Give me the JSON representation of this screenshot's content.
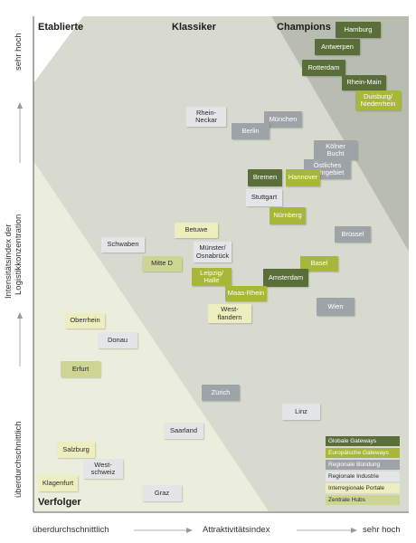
{
  "zones": {
    "etablierte": "Etablierte",
    "klassiker": "Klassiker",
    "champions": "Champions",
    "verfolger": "Verfolger"
  },
  "axes": {
    "y_title_line1": "Intensitätsindex der",
    "y_title_line2": "Logistikkonzentration",
    "y_high": "sehr hoch",
    "y_low": "überdurchschnittlich",
    "x_low": "überdurchschnittlich",
    "x_title": "Attraktivitätsindex",
    "x_high": "sehr hoch"
  },
  "colors": {
    "global": "#5a6e39",
    "europe": "#a7b73a",
    "regional_bundling": "#9ea3a8",
    "regional_industry": "#e4e5e6",
    "interregional": "#edeec0",
    "central_hubs": "#ccd692",
    "zone_champions": "#b9bcb0",
    "zone_klassiker": "#d8dacf",
    "zone_verfolger": "#eceedd"
  },
  "regions": [
    {
      "name": "Hamburg",
      "cat": "global"
    },
    {
      "name": "Antwerpen",
      "cat": "global"
    },
    {
      "name": "Rotterdam",
      "cat": "global"
    },
    {
      "name": "Rhein-Main",
      "cat": "global"
    },
    {
      "name": "Duisburg/\nNiederrhein",
      "cat": "europe"
    },
    {
      "name": "Rhein-\nNeckar",
      "cat": "regional_industry"
    },
    {
      "name": "München",
      "cat": "regional_bundling"
    },
    {
      "name": "Berlin",
      "cat": "regional_bundling"
    },
    {
      "name": "Kölner\nBucht",
      "cat": "regional_bundling"
    },
    {
      "name": "Östliches\nRuhrgebiet",
      "cat": "regional_bundling"
    },
    {
      "name": "Bremen",
      "cat": "global"
    },
    {
      "name": "Hannover",
      "cat": "europe"
    },
    {
      "name": "Stuttgart",
      "cat": "regional_industry"
    },
    {
      "name": "Nürnberg",
      "cat": "europe"
    },
    {
      "name": "Brüssel",
      "cat": "regional_bundling"
    },
    {
      "name": "Betuwe",
      "cat": "interregional"
    },
    {
      "name": "Schwaben",
      "cat": "regional_industry"
    },
    {
      "name": "Münster/\nOsnabrück",
      "cat": "regional_industry"
    },
    {
      "name": "Mitte D",
      "cat": "central_hubs"
    },
    {
      "name": "Leipzig/\nHalle",
      "cat": "europe"
    },
    {
      "name": "Basel",
      "cat": "europe"
    },
    {
      "name": "Amsterdam",
      "cat": "global"
    },
    {
      "name": "Maas-Rhein",
      "cat": "europe"
    },
    {
      "name": "Wien",
      "cat": "regional_bundling"
    },
    {
      "name": "West-\nflandern",
      "cat": "interregional"
    },
    {
      "name": "Oberrhein",
      "cat": "interregional"
    },
    {
      "name": "Donau",
      "cat": "regional_industry"
    },
    {
      "name": "Erfurt",
      "cat": "central_hubs"
    },
    {
      "name": "Zürich",
      "cat": "regional_bundling"
    },
    {
      "name": "Linz",
      "cat": "regional_industry"
    },
    {
      "name": "Saarland",
      "cat": "regional_industry"
    },
    {
      "name": "Salzburg",
      "cat": "interregional"
    },
    {
      "name": "West-\nschweiz",
      "cat": "regional_industry"
    },
    {
      "name": "Klagenfurt",
      "cat": "interregional"
    },
    {
      "name": "Graz",
      "cat": "regional_industry"
    }
  ],
  "legend": [
    {
      "label": "Globale Gateways",
      "cat": "global"
    },
    {
      "label": "Europäische Gateways",
      "cat": "europe"
    },
    {
      "label": "Regionale Bündung",
      "cat": "regional_bundling"
    },
    {
      "label": "Regionale Industrie",
      "cat": "regional_industry"
    },
    {
      "label": "Interregionale Portale",
      "cat": "interregional"
    },
    {
      "label": "Zentrale Hubs",
      "cat": "central_hubs"
    }
  ]
}
